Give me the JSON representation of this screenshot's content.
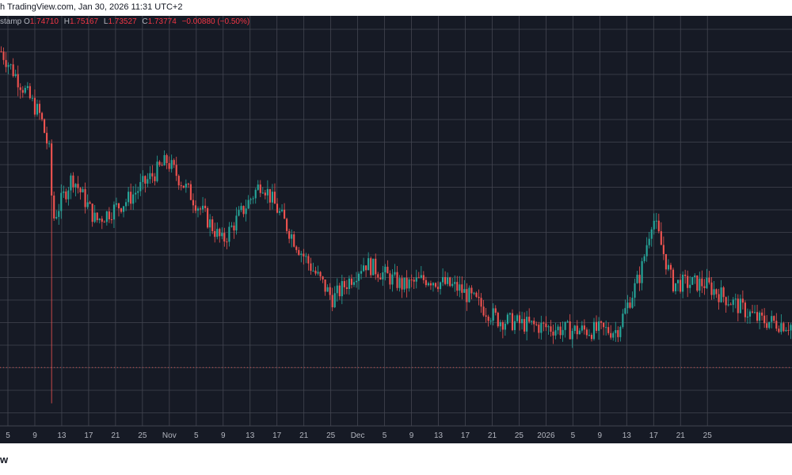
{
  "header": {
    "published_text": "h TradingView.com, Jan 30, 2026 11:31 UTC+2"
  },
  "legend": {
    "symbol_fragment": "stamp",
    "open_label": "O",
    "open": "1.74710",
    "high_label": "H",
    "high": "1.75167",
    "low_label": "L",
    "low": "1.73527",
    "close_label": "C",
    "close": "1.73774",
    "change": "−0.00880 (−0.50%)"
  },
  "footer": {
    "brand_fragment": "w"
  },
  "colors": {
    "background": "#161a25",
    "grid": "#434651",
    "up": "#26a69a",
    "down": "#ef5350",
    "axis_text": "#b2b5be",
    "last_price_line": "#ef5350"
  },
  "chart_data": {
    "type": "candlestick",
    "x_tick_labels": [
      "5",
      "9",
      "13",
      "17",
      "21",
      "25",
      "Nov",
      "5",
      "9",
      "13",
      "17",
      "21",
      "25",
      "Dec",
      "5",
      "9",
      "13",
      "17",
      "21",
      "25",
      "2026",
      "5",
      "9",
      "13",
      "17",
      "21",
      "25"
    ],
    "y_axis_visible": false,
    "grid": true,
    "approx_close_path": [
      {
        "x": 0.0,
        "y": 2.95
      },
      {
        "x": 0.03,
        "y": 2.8
      },
      {
        "x": 0.05,
        "y": 2.7
      },
      {
        "x": 0.062,
        "y": 2.55
      },
      {
        "x": 0.065,
        "y": 2.3
      },
      {
        "x": 0.09,
        "y": 2.47
      },
      {
        "x": 0.12,
        "y": 2.3
      },
      {
        "x": 0.16,
        "y": 2.38
      },
      {
        "x": 0.21,
        "y": 2.53
      },
      {
        "x": 0.24,
        "y": 2.4
      },
      {
        "x": 0.28,
        "y": 2.22
      },
      {
        "x": 0.33,
        "y": 2.45
      },
      {
        "x": 0.38,
        "y": 2.18
      },
      {
        "x": 0.42,
        "y": 2.0
      },
      {
        "x": 0.46,
        "y": 2.14
      },
      {
        "x": 0.51,
        "y": 2.05
      },
      {
        "x": 0.54,
        "y": 2.08
      },
      {
        "x": 0.58,
        "y": 2.04
      },
      {
        "x": 0.63,
        "y": 1.92
      },
      {
        "x": 0.67,
        "y": 1.9
      },
      {
        "x": 0.72,
        "y": 1.88
      },
      {
        "x": 0.78,
        "y": 1.88
      },
      {
        "x": 0.81,
        "y": 2.1
      },
      {
        "x": 0.825,
        "y": 2.32
      },
      {
        "x": 0.85,
        "y": 2.06
      },
      {
        "x": 0.89,
        "y": 2.06
      },
      {
        "x": 0.93,
        "y": 1.98
      },
      {
        "x": 0.96,
        "y": 1.92
      },
      {
        "x": 1.0,
        "y": 1.9
      }
    ],
    "crash_wick": {
      "x": 0.063,
      "low": 1.6
    },
    "last_price": 1.73774
  }
}
